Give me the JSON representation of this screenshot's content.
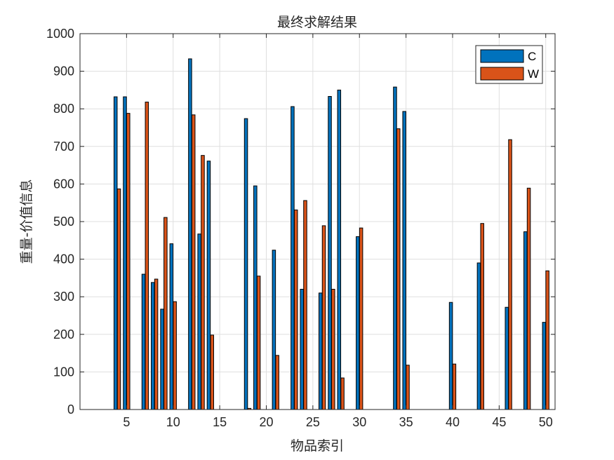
{
  "chart_data": {
    "type": "bar",
    "title": "最终求解结果",
    "xlabel": "物品索引",
    "ylabel": "重量-价值信息",
    "xlim": [
      0,
      51
    ],
    "ylim": [
      0,
      1000
    ],
    "xticks": [
      5,
      10,
      15,
      20,
      25,
      30,
      35,
      40,
      45,
      50
    ],
    "yticks": [
      0,
      100,
      200,
      300,
      400,
      500,
      600,
      700,
      800,
      900,
      1000
    ],
    "grid": true,
    "legend_position": "top-right",
    "categories": [
      1,
      2,
      3,
      4,
      5,
      6,
      7,
      8,
      9,
      10,
      11,
      12,
      13,
      14,
      15,
      16,
      17,
      18,
      19,
      20,
      21,
      22,
      23,
      24,
      25,
      26,
      27,
      28,
      29,
      30,
      31,
      32,
      33,
      34,
      35,
      36,
      37,
      38,
      39,
      40,
      41,
      42,
      43,
      44,
      45,
      46,
      47,
      48,
      49,
      50
    ],
    "series": [
      {
        "name": "C",
        "color": "#0072BD",
        "values": [
          0,
          0,
          0,
          832,
          832,
          0,
          360,
          338,
          267,
          441,
          0,
          933,
          467,
          661,
          0,
          0,
          0,
          774,
          595,
          0,
          424,
          0,
          806,
          320,
          0,
          310,
          833,
          850,
          0,
          460,
          0,
          0,
          0,
          858,
          793,
          0,
          0,
          0,
          0,
          285,
          0,
          0,
          390,
          0,
          0,
          272,
          0,
          473,
          0,
          232
        ]
      },
      {
        "name": "W",
        "color": "#D95319",
        "values": [
          0,
          0,
          0,
          587,
          788,
          0,
          818,
          347,
          511,
          287,
          0,
          784,
          676,
          198,
          0,
          0,
          0,
          3,
          355,
          0,
          144,
          0,
          531,
          556,
          0,
          489,
          320,
          84,
          0,
          483,
          0,
          0,
          0,
          747,
          118,
          0,
          0,
          0,
          0,
          121,
          0,
          0,
          495,
          0,
          0,
          718,
          0,
          589,
          0,
          369
        ]
      }
    ]
  }
}
